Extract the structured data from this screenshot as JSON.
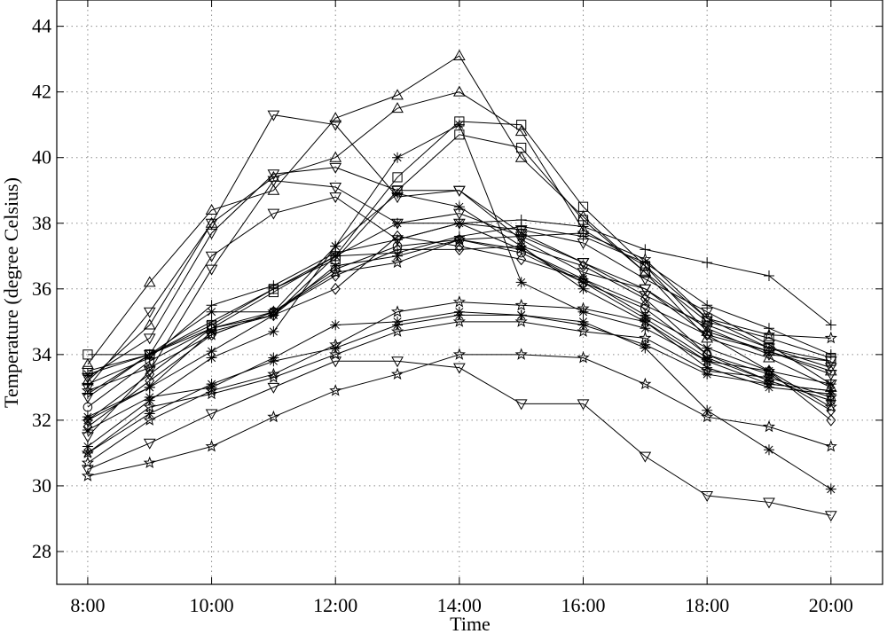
{
  "chart_data": {
    "type": "line",
    "xlabel": "Time",
    "ylabel": "Temperature (degree Celsius)",
    "x": [
      "8:00",
      "9:00",
      "10:00",
      "11:00",
      "12:00",
      "13:00",
      "14:00",
      "15:00",
      "16:00",
      "17:00",
      "18:00",
      "19:00",
      "20:00"
    ],
    "x_tick_labels": [
      "8:00",
      "10:00",
      "12:00",
      "14:00",
      "16:00",
      "18:00",
      "20:00"
    ],
    "y_tick_labels": [
      "28",
      "30",
      "32",
      "34",
      "36",
      "38",
      "40",
      "42",
      "44"
    ],
    "xlim": [
      "7:30",
      "20:50"
    ],
    "ylim": [
      27,
      44.8
    ],
    "grid": true,
    "series": [
      {
        "marker": "triangle-up",
        "values": [
          33.7,
          36.2,
          38.4,
          39.0,
          41.2,
          41.9,
          43.1,
          40.0,
          38.2,
          36.5,
          34.5,
          33.9,
          33.0
        ]
      },
      {
        "marker": "triangle-up",
        "values": [
          33.2,
          34.9,
          38.0,
          39.4,
          40.0,
          41.5,
          42.0,
          40.8,
          37.8,
          36.7,
          34.7,
          34.1,
          33.5
        ]
      },
      {
        "marker": "square",
        "values": [
          34.0,
          34.0,
          34.8,
          35.9,
          37.0,
          39.4,
          41.1,
          41.0,
          38.5,
          36.7,
          35.1,
          34.2,
          33.8
        ]
      },
      {
        "marker": "square",
        "values": [
          33.5,
          34.0,
          34.9,
          36.0,
          36.9,
          39.0,
          40.7,
          40.3,
          38.1,
          36.5,
          35.0,
          34.5,
          33.9
        ]
      },
      {
        "marker": "triangle-down",
        "values": [
          33.0,
          35.3,
          38.0,
          41.3,
          41.0,
          38.8,
          39.0,
          37.5,
          36.5,
          36.0,
          34.6,
          34.1,
          33.4
        ]
      },
      {
        "marker": "triangle-down",
        "values": [
          33.3,
          34.5,
          37.7,
          39.5,
          39.7,
          39.0,
          39.0,
          37.7,
          36.8,
          36.0,
          34.8,
          34.0,
          33.8
        ]
      },
      {
        "marker": "triangle-down",
        "values": [
          32.7,
          34.0,
          37.0,
          38.3,
          38.8,
          37.5,
          38.0,
          37.8,
          37.4,
          36.3,
          35.3,
          34.3,
          33.1
        ]
      },
      {
        "marker": "triangle-down",
        "values": [
          31.5,
          33.5,
          36.6,
          39.3,
          39.1,
          38.0,
          38.3,
          37.6,
          36.8,
          35.8,
          34.9,
          34.2,
          33.6
        ]
      },
      {
        "marker": "asterisk",
        "values": [
          33.4,
          34.0,
          35.3,
          35.3,
          37.3,
          40.0,
          41.0,
          36.2,
          35.3,
          34.8,
          33.8,
          33.1,
          32.9
        ]
      },
      {
        "marker": "asterisk",
        "values": [
          32.0,
          33.0,
          34.7,
          35.2,
          37.0,
          38.0,
          38.0,
          37.2,
          36.2,
          35.1,
          33.9,
          33.2,
          32.6
        ]
      },
      {
        "marker": "asterisk",
        "values": [
          31.2,
          32.6,
          33.9,
          34.7,
          37.3,
          38.9,
          38.5,
          37.3,
          36.0,
          35.0,
          33.6,
          33.0,
          32.8
        ]
      },
      {
        "marker": "asterisk",
        "values": [
          32.1,
          33.0,
          34.1,
          35.2,
          36.7,
          37.0,
          37.5,
          37.2,
          36.3,
          35.2,
          34.2,
          33.5,
          33.1
        ]
      },
      {
        "marker": "asterisk",
        "values": [
          31.7,
          32.7,
          33.0,
          33.9,
          34.9,
          35.0,
          35.3,
          35.2,
          34.9,
          34.3,
          33.4,
          33.1,
          32.9
        ]
      },
      {
        "marker": "asterisk",
        "values": [
          31.0,
          32.2,
          33.1,
          33.8,
          34.2,
          34.9,
          35.2,
          35.2,
          35.0,
          34.2,
          32.3,
          31.1,
          29.9
        ]
      },
      {
        "marker": "plus",
        "values": [
          33.1,
          33.9,
          35.5,
          36.1,
          37.1,
          37.5,
          38.0,
          38.1,
          37.9,
          37.2,
          36.8,
          36.4,
          34.9
        ]
      },
      {
        "marker": "plus",
        "values": [
          32.8,
          34.0,
          35.0,
          36.0,
          37.0,
          37.1,
          37.6,
          37.9,
          37.6,
          36.8,
          35.5,
          34.8,
          34.0
        ]
      },
      {
        "marker": "diamond",
        "values": [
          32.0,
          33.4,
          34.8,
          35.2,
          36.0,
          37.6,
          37.3,
          36.9,
          36.3,
          35.5,
          34.6,
          33.5,
          32.0
        ]
      },
      {
        "marker": "diamond",
        "values": [
          31.8,
          33.2,
          34.6,
          35.3,
          36.4,
          37.2,
          37.2,
          37.3,
          36.7,
          35.7,
          34.0,
          33.4,
          32.3
        ]
      },
      {
        "marker": "pentagram",
        "values": [
          30.3,
          30.7,
          31.2,
          32.1,
          32.9,
          33.4,
          34.0,
          34.0,
          33.9,
          33.1,
          32.1,
          31.8,
          31.2
        ]
      },
      {
        "marker": "pentagram",
        "values": [
          30.7,
          32.0,
          32.9,
          33.4,
          34.3,
          35.3,
          35.6,
          35.5,
          35.4,
          35.0,
          33.8,
          33.5,
          32.4
        ]
      },
      {
        "marker": "pentagram",
        "values": [
          31.0,
          32.4,
          32.8,
          33.3,
          34.0,
          34.7,
          35.0,
          35.0,
          34.7,
          34.5,
          33.5,
          33.3,
          32.7
        ]
      },
      {
        "marker": "triangle-down",
        "values": [
          30.5,
          31.3,
          32.2,
          33.0,
          33.8,
          33.8,
          33.6,
          32.5,
          32.5,
          30.9,
          29.7,
          29.5,
          29.1
        ]
      },
      {
        "marker": "pentagram",
        "values": [
          32.9,
          33.6,
          34.6,
          35.3,
          36.5,
          36.8,
          37.5,
          37.6,
          37.7,
          36.9,
          35.1,
          34.6,
          34.5
        ]
      },
      {
        "marker": "circle",
        "values": [
          32.4,
          33.8,
          34.8,
          35.3,
          36.6,
          37.3,
          37.5,
          37.1,
          36.2,
          35.4,
          34.0,
          33.2,
          32.6
        ]
      }
    ]
  }
}
